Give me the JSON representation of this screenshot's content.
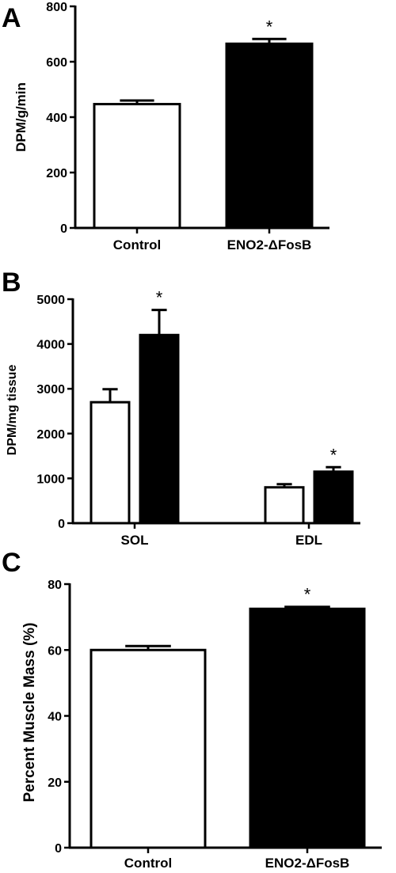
{
  "chart_data": [
    {
      "panel": "A",
      "type": "bar",
      "categories": [
        "Control",
        "ENO2-ΔFosB"
      ],
      "values": [
        447,
        665
      ],
      "errors": [
        13,
        17
      ],
      "significance": [
        "",
        "*"
      ],
      "fills": [
        "#ffffff",
        "#000000"
      ],
      "ylabel": "DPM/g/min",
      "ylim": [
        0,
        800
      ],
      "yticks": [
        0,
        200,
        400,
        600,
        800
      ]
    },
    {
      "panel": "B",
      "type": "bar",
      "categories": [
        "SOL",
        "EDL"
      ],
      "series": [
        {
          "values": [
            2700,
            800
          ],
          "errors": [
            290,
            70
          ],
          "fill": "#ffffff",
          "significance": [
            "",
            ""
          ]
        },
        {
          "values": [
            4200,
            1150
          ],
          "errors": [
            560,
            100
          ],
          "fill": "#000000",
          "significance": [
            "*",
            "*"
          ]
        }
      ],
      "ylabel": "DPM/mg tissue",
      "ylim": [
        0,
        5000
      ],
      "yticks": [
        0,
        1000,
        2000,
        3000,
        4000,
        5000
      ]
    },
    {
      "panel": "C",
      "type": "bar",
      "categories": [
        "Control",
        "ENO2-ΔFosB"
      ],
      "values": [
        60,
        72.5
      ],
      "errors": [
        1.2,
        0.6
      ],
      "significance": [
        "",
        "*"
      ],
      "fills": [
        "#ffffff",
        "#000000"
      ],
      "ylabel": "Percent Muscle Mass (%)",
      "ylim": [
        0,
        80
      ],
      "yticks": [
        0,
        20,
        40,
        60,
        80
      ]
    }
  ]
}
